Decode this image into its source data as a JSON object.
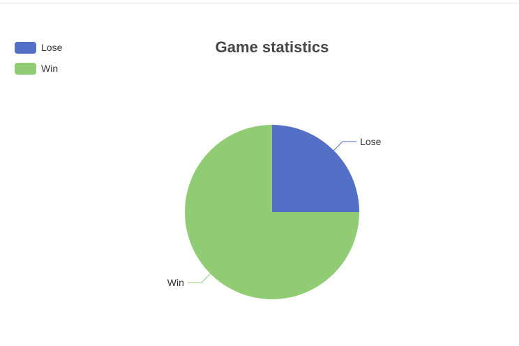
{
  "chart_data": {
    "type": "pie",
    "title": "Game statistics",
    "legend_position": "top-left",
    "series": [
      {
        "name": "Lose",
        "value": 25,
        "color": "#5470c6"
      },
      {
        "name": "Win",
        "value": 75,
        "color": "#91cc75"
      }
    ]
  }
}
